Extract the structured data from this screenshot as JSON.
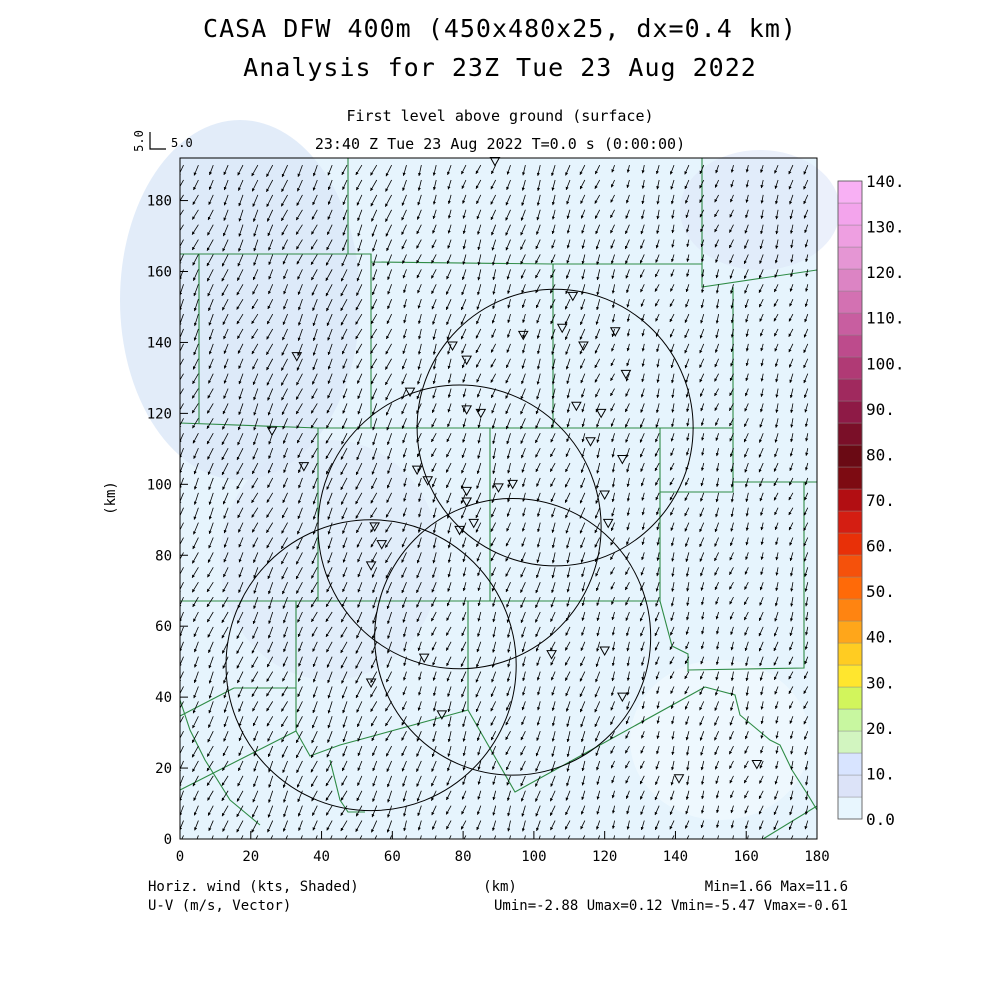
{
  "header": {
    "title_line1": "CASA DFW 400m (450x480x25, dx=0.4 km)",
    "title_line2": "Analysis for 23Z Tue 23 Aug 2022",
    "subtitle_line1": "First level above ground (surface)",
    "subtitle_line2": "23:40 Z Tue 23 Aug 2022    T=0.0 s (0:00:00)"
  },
  "reference_vector": {
    "label_vertical": "5.0",
    "label": "5.0"
  },
  "footer": {
    "left_line1": "Horiz. wind (kts, Shaded)",
    "left_line2": "U-V (m/s, Vector)",
    "center": "(km)",
    "right_line1": "Min=1.66 Max=11.6",
    "right_line2": "Umin=-2.88 Umax=0.12 Vmin=-5.47 Vmax=-0.61"
  },
  "chart_data": {
    "type": "heatmap",
    "xlabel": "",
    "ylabel": "(km)",
    "xlim": [
      0,
      180
    ],
    "ylim": [
      0,
      192
    ],
    "x_ticks": [
      "0",
      "20",
      "40",
      "60",
      "80",
      "100",
      "120",
      "140",
      "160",
      "180"
    ],
    "y_ticks": [
      "0",
      "20",
      "40",
      "60",
      "80",
      "100",
      "120",
      "140",
      "160",
      "180"
    ],
    "colorbar": {
      "labels": [
        "0.0",
        "10.",
        "20.",
        "30.",
        "40.",
        "50.",
        "60.",
        "70.",
        "80.",
        "90.",
        "100.",
        "110.",
        "120.",
        "130.",
        "140."
      ],
      "colors": [
        "#e8f6fe",
        "#dce3f8",
        "#d8e4ff",
        "#d2f5c0",
        "#c8f7a0",
        "#d2f55c",
        "#ffe62e",
        "#ffcc22",
        "#ffa61a",
        "#ff8411",
        "#ff6a08",
        "#f5510b",
        "#e83008",
        "#d41e12",
        "#b20e12",
        "#7d0b12",
        "#6a0a14",
        "#7a0f28",
        "#8e1a46",
        "#a0295e",
        "#b03a75",
        "#bd4b8c",
        "#c85ea0",
        "#d371b2",
        "#dc84c4",
        "#e596d4",
        "#ee9fe1",
        "#f3a4ec",
        "#f8b0f4"
      ],
      "min": 0,
      "max": 140
    },
    "field_summary": {
      "shaded_min_kts": 1.66,
      "shaded_max_kts": 11.6,
      "u_min_ms": -2.88,
      "u_max_ms": 0.12,
      "v_min_ms": -5.47,
      "v_max_ms": -0.61
    },
    "wind_regions": [
      {
        "x_range": [
          0,
          60
        ],
        "y_range": [
          0,
          192
        ],
        "u": -1.4,
        "v": -3.0
      },
      {
        "x_range": [
          60,
          120
        ],
        "y_range": [
          0,
          192
        ],
        "u": -1.0,
        "v": -2.7
      },
      {
        "x_range": [
          120,
          180
        ],
        "y_range": [
          0,
          192
        ],
        "u": -0.8,
        "v": -2.3
      }
    ],
    "radar_rings": [
      {
        "center": [
          106,
          116
        ],
        "radius": 39
      },
      {
        "center": [
          79,
          88
        ],
        "radius": 40
      },
      {
        "center": [
          94,
          57
        ],
        "radius": 39
      },
      {
        "center": [
          54,
          49
        ],
        "radius": 41
      }
    ],
    "stations": [
      [
        89,
        191
      ],
      [
        111,
        153
      ],
      [
        108,
        144
      ],
      [
        97,
        142
      ],
      [
        114,
        139
      ],
      [
        123,
        143
      ],
      [
        77,
        139
      ],
      [
        81,
        135
      ],
      [
        33,
        136
      ],
      [
        126,
        131
      ],
      [
        65,
        126
      ],
      [
        81,
        121
      ],
      [
        85,
        120
      ],
      [
        112,
        122
      ],
      [
        119,
        120
      ],
      [
        26,
        115
      ],
      [
        116,
        112
      ],
      [
        35,
        105
      ],
      [
        67,
        104
      ],
      [
        70,
        101
      ],
      [
        125,
        107
      ],
      [
        81,
        98
      ],
      [
        90,
        99
      ],
      [
        94,
        100
      ],
      [
        120,
        97
      ],
      [
        81,
        95
      ],
      [
        55,
        88
      ],
      [
        57,
        83
      ],
      [
        83,
        89
      ],
      [
        79,
        87
      ],
      [
        54,
        77
      ],
      [
        121,
        89
      ],
      [
        69,
        51
      ],
      [
        105,
        52
      ],
      [
        120,
        53
      ],
      [
        54,
        44
      ],
      [
        74,
        35
      ],
      [
        125,
        40
      ],
      [
        141,
        17
      ],
      [
        163,
        21
      ]
    ]
  }
}
